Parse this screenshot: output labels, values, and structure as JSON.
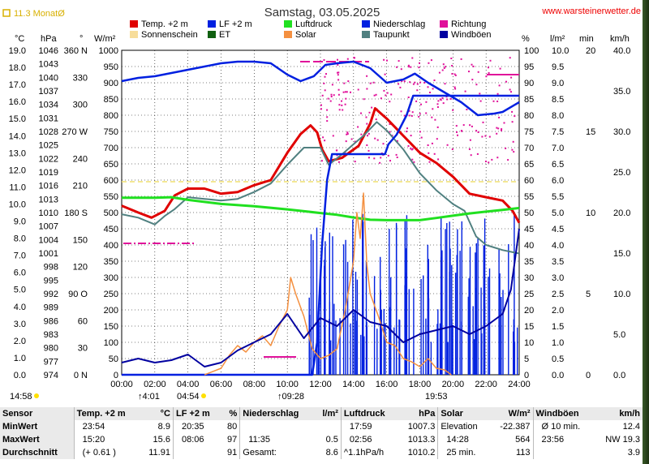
{
  "header": {
    "title": "Samstag, 03.05.2025",
    "website": "www.warsteinerwetter.de",
    "month_toggle": "11.3 MonatØ"
  },
  "legend": [
    {
      "label": "Temp. +2 m",
      "color": "#e00000"
    },
    {
      "label": "LF +2 m",
      "color": "#0020e0"
    },
    {
      "label": "Luftdruck",
      "color": "#20e020"
    },
    {
      "label": "Niederschlag",
      "color": "#0020e0"
    },
    {
      "label": "Richtung",
      "color": "#e0109a"
    },
    {
      "label": "Sonnenschein",
      "color": "#f7dd9a"
    },
    {
      "label": "ET",
      "color": "#106010"
    },
    {
      "label": "Solar",
      "color": "#f49040"
    },
    {
      "label": "Taupunkt",
      "color": "#508080"
    },
    {
      "label": "Windböen",
      "color": "#0000a0"
    }
  ],
  "axes": {
    "left_units": [
      "°C",
      "hPa",
      "°",
      "W/m²"
    ],
    "right_units": [
      "%",
      "l/m²",
      "min",
      "km/h"
    ],
    "temp_ticks": [
      "19.0",
      "18.0",
      "17.0",
      "16.0",
      "15.0",
      "14.0",
      "13.0",
      "12.0",
      "11.0",
      "10.0",
      "9.0",
      "8.0",
      "7.0",
      "6.0",
      "5.0",
      "4.0",
      "3.0",
      "2.0",
      "1.0",
      "0.0"
    ],
    "hpa_ticks": [
      "1046",
      "1043",
      "1040",
      "1037",
      "1034",
      "1031",
      "1028",
      "1025",
      "1022",
      "1019",
      "1016",
      "1013",
      "1010",
      "1007",
      "1004",
      "1001",
      "998",
      "995",
      "992",
      "989",
      "986",
      "983",
      "980",
      "977",
      "974"
    ],
    "dir_ticks": [
      "360 N",
      "330",
      "300",
      "270 W",
      "240",
      "210",
      "180 S",
      "150",
      "120",
      "90 O",
      "60",
      "30",
      "0 N"
    ],
    "solar_ticks": [
      "1000",
      "950",
      "900",
      "850",
      "800",
      "750",
      "700",
      "650",
      "600",
      "550",
      "500",
      "450",
      "400",
      "350",
      "300",
      "250",
      "200",
      "150",
      "100",
      "50",
      "0"
    ],
    "pct_ticks": [
      "100",
      "95",
      "90",
      "85",
      "80",
      "75",
      "70",
      "65",
      "60",
      "55",
      "50",
      "45",
      "40",
      "35",
      "30",
      "25",
      "20",
      "15",
      "10",
      "5",
      "0"
    ],
    "rain_ticks": [
      "10.0",
      "9.5",
      "9.0",
      "8.5",
      "8.0",
      "7.5",
      "7.0",
      "6.5",
      "6.0",
      "5.5",
      "5.0",
      "4.5",
      "4.0",
      "3.5",
      "3.0",
      "2.5",
      "2.0",
      "1.5",
      "1.0",
      "0.5",
      "0.0"
    ],
    "min_ticks": [
      "20",
      "15",
      "10",
      "5",
      "0"
    ],
    "kmh_ticks": [
      "40.0",
      "35.0",
      "30.0",
      "25.0",
      "20.0",
      "15.0",
      "10.0",
      "5.0",
      "0.0"
    ],
    "time_ticks": [
      "00:00",
      "02:00",
      "04:00",
      "06:00",
      "08:00",
      "10:00",
      "12:00",
      "14:00",
      "16:00",
      "18:00",
      "20:00",
      "22:00",
      "24:00"
    ]
  },
  "markers": {
    "moon": "4:01",
    "sunrise": "04:54",
    "solar_noon": "09:28",
    "sunset": "19:53",
    "now": "14:58"
  },
  "chart_data": {
    "type": "line",
    "title": "Samstag, 03.05.2025",
    "x_unit": "hours",
    "x_range": [
      0,
      24
    ],
    "series": [
      {
        "name": "Temp. +2 m",
        "unit": "°C",
        "color": "#e00000",
        "points": [
          [
            0,
            9.9
          ],
          [
            1,
            9.5
          ],
          [
            1.8,
            9.2
          ],
          [
            2.6,
            9.6
          ],
          [
            3.2,
            10.5
          ],
          [
            4,
            10.9
          ],
          [
            5,
            10.9
          ],
          [
            6,
            10.6
          ],
          [
            7,
            10.7
          ],
          [
            8,
            11.1
          ],
          [
            9,
            11.4
          ],
          [
            10,
            13.0
          ],
          [
            10.8,
            14.1
          ],
          [
            11.4,
            14.6
          ],
          [
            11.8,
            14.2
          ],
          [
            12.1,
            13.2
          ],
          [
            12.5,
            12.5
          ],
          [
            13.3,
            12.7
          ],
          [
            14.3,
            13.4
          ],
          [
            15.0,
            14.7
          ],
          [
            15.3,
            15.6
          ],
          [
            16.0,
            15.0
          ],
          [
            17.0,
            14.0
          ],
          [
            18.0,
            13.0
          ],
          [
            19.0,
            12.4
          ],
          [
            20.0,
            11.6
          ],
          [
            21.0,
            10.6
          ],
          [
            22.0,
            10.4
          ],
          [
            23.0,
            10.2
          ],
          [
            23.6,
            9.6
          ],
          [
            24.0,
            8.9
          ]
        ]
      },
      {
        "name": "Taupunkt",
        "unit": "°C",
        "color": "#508080",
        "points": [
          [
            0,
            9.4
          ],
          [
            1,
            9.2
          ],
          [
            2,
            8.8
          ],
          [
            2.6,
            9.3
          ],
          [
            3.2,
            9.7
          ],
          [
            4,
            10.4
          ],
          [
            5,
            10.3
          ],
          [
            6,
            10.2
          ],
          [
            7,
            10.3
          ],
          [
            8,
            10.7
          ],
          [
            9,
            11.2
          ],
          [
            10,
            12.3
          ],
          [
            11,
            13.3
          ],
          [
            12,
            13.3
          ],
          [
            12.5,
            12.3
          ],
          [
            13.3,
            12.9
          ],
          [
            14,
            13.5
          ],
          [
            14.6,
            14.0
          ],
          [
            15.4,
            14.8
          ],
          [
            16,
            14.3
          ],
          [
            17,
            13.2
          ],
          [
            18,
            11.8
          ],
          [
            19,
            10.8
          ],
          [
            20,
            10.0
          ],
          [
            20.7,
            9.6
          ],
          [
            21.4,
            8.1
          ],
          [
            22,
            7.6
          ],
          [
            23,
            7.3
          ],
          [
            24,
            7.1
          ]
        ]
      },
      {
        "name": "LF +2 m",
        "unit": "%",
        "color": "#0020e0",
        "points": [
          [
            0,
            90.5
          ],
          [
            1,
            91.5
          ],
          [
            2,
            92.0
          ],
          [
            3,
            93.0
          ],
          [
            4,
            94.0
          ],
          [
            5,
            95.0
          ],
          [
            6,
            96.0
          ],
          [
            7,
            96.5
          ],
          [
            8,
            96.5
          ],
          [
            9,
            96.0
          ],
          [
            10,
            92.5
          ],
          [
            10.8,
            90.5
          ],
          [
            11.6,
            92.0
          ],
          [
            12.3,
            95.5
          ],
          [
            13,
            96.0
          ],
          [
            14,
            96.5
          ],
          [
            15,
            94.5
          ],
          [
            16,
            90.0
          ],
          [
            17,
            91.0
          ],
          [
            17.7,
            92.8
          ],
          [
            18.5,
            90.0
          ],
          [
            19.5,
            87.0
          ],
          [
            20.5,
            84.0
          ],
          [
            21.5,
            80.0
          ],
          [
            22.5,
            80.5
          ],
          [
            23,
            81.0
          ],
          [
            24,
            84.0
          ]
        ]
      },
      {
        "name": "Luftdruck",
        "unit": "hPa",
        "color": "#20e020",
        "points": [
          [
            0,
            1013.3
          ],
          [
            2,
            1013.3
          ],
          [
            3,
            1013.4
          ],
          [
            4,
            1012.8
          ],
          [
            6,
            1011.9
          ],
          [
            8,
            1011.4
          ],
          [
            10,
            1010.7
          ],
          [
            12,
            1009.9
          ],
          [
            13,
            1009.5
          ],
          [
            14,
            1008.9
          ],
          [
            15,
            1008.4
          ],
          [
            16,
            1008.3
          ],
          [
            17,
            1008.3
          ],
          [
            18,
            1008.3
          ],
          [
            19,
            1008.8
          ],
          [
            20,
            1009.3
          ],
          [
            21,
            1009.8
          ],
          [
            22,
            1010.2
          ],
          [
            23,
            1010.6
          ],
          [
            24,
            1011.0
          ]
        ]
      },
      {
        "name": "Niederschlag",
        "unit": "l/m²",
        "color": "#0020e0",
        "points": [
          [
            0,
            0
          ],
          [
            11.5,
            0
          ],
          [
            11.8,
            1.0
          ],
          [
            12.1,
            4.0
          ],
          [
            12.4,
            6.0
          ],
          [
            12.7,
            6.8
          ],
          [
            15.9,
            6.8
          ],
          [
            16.1,
            7.1
          ],
          [
            16.6,
            7.4
          ],
          [
            17.2,
            8.0
          ],
          [
            17.6,
            8.6
          ],
          [
            24,
            8.6
          ]
        ]
      },
      {
        "name": "Solar",
        "unit": "W/m²",
        "color": "#f49040",
        "points": [
          [
            5.0,
            0
          ],
          [
            6,
            20
          ],
          [
            6.5,
            60
          ],
          [
            7,
            90
          ],
          [
            7.5,
            70
          ],
          [
            8,
            100
          ],
          [
            8.5,
            120
          ],
          [
            9,
            90
          ],
          [
            9.5,
            150
          ],
          [
            10,
            200
          ],
          [
            10.2,
            300
          ],
          [
            10.5,
            250
          ],
          [
            11,
            180
          ],
          [
            11.5,
            80
          ],
          [
            12,
            50
          ],
          [
            12.5,
            60
          ],
          [
            13,
            80
          ],
          [
            13.5,
            200
          ],
          [
            14,
            350
          ],
          [
            14.2,
            500
          ],
          [
            14.4,
            420
          ],
          [
            14.6,
            560
          ],
          [
            14.8,
            340
          ],
          [
            15,
            250
          ],
          [
            15.5,
            180
          ],
          [
            16,
            100
          ],
          [
            16.5,
            90
          ],
          [
            17,
            50
          ],
          [
            17.5,
            40
          ],
          [
            18,
            25
          ],
          [
            18.5,
            50
          ],
          [
            19,
            20
          ],
          [
            19.5,
            15
          ],
          [
            19.9,
            0
          ]
        ]
      },
      {
        "name": "Windböen",
        "unit": "km/h",
        "color": "#0000a0",
        "points": [
          [
            0,
            1.5
          ],
          [
            1,
            2.0
          ],
          [
            2,
            1.5
          ],
          [
            3,
            1.8
          ],
          [
            4,
            2.5
          ],
          [
            5,
            1.0
          ],
          [
            6,
            1.5
          ],
          [
            7,
            3.0
          ],
          [
            8,
            4.0
          ],
          [
            9,
            5.0
          ],
          [
            10,
            7.5
          ],
          [
            11,
            4.5
          ],
          [
            12,
            7.0
          ],
          [
            13,
            6.0
          ],
          [
            14,
            8.0
          ],
          [
            15,
            6.5
          ],
          [
            16,
            6.0
          ],
          [
            17,
            4.0
          ],
          [
            18,
            5.0
          ],
          [
            19,
            5.5
          ],
          [
            20,
            6.0
          ],
          [
            21,
            5.0
          ],
          [
            22,
            6.0
          ],
          [
            23,
            7.5
          ],
          [
            23.5,
            10.5
          ],
          [
            24,
            18.0
          ]
        ]
      }
    ],
    "ylim": {
      "temp": [
        0,
        19
      ],
      "pct": [
        0,
        100
      ],
      "hpa": [
        974,
        1046
      ],
      "wm2": [
        0,
        1000
      ],
      "rain": [
        0,
        10
      ],
      "kmh": [
        0,
        40
      ],
      "deg": [
        0,
        360
      ]
    }
  },
  "stats": {
    "headers": [
      "Sensor",
      "Temp. +2 m",
      "°C",
      "LF +2 m",
      "%",
      "Niederschlag",
      "l/m²",
      "Luftdruck",
      "hPa",
      "Solar",
      "W/m²",
      "Windböen",
      "km/h"
    ],
    "rows": [
      {
        "label": "MinWert",
        "cells": [
          "23:54",
          "8.9",
          "20:35",
          "80",
          "",
          "",
          "17:59",
          "1007.3",
          "Elevation",
          "-22.387",
          "Ø 10 min.",
          "12.4"
        ]
      },
      {
        "label": "MaxWert",
        "cells": [
          "15:20",
          "15.6",
          "08:06",
          "97",
          "11:35",
          "0.5",
          "02:56",
          "1013.3",
          "14:28",
          "564",
          "23:56",
          "NW 19.3"
        ]
      },
      {
        "label": "Durchschnitt",
        "cells": [
          "(+ 0.61 )",
          "11.91",
          "",
          "91",
          "Gesamt:",
          "8.6",
          "^1.1hPa/h",
          "1010.2",
          "25 min.",
          "113",
          "",
          "3.9"
        ]
      }
    ]
  }
}
